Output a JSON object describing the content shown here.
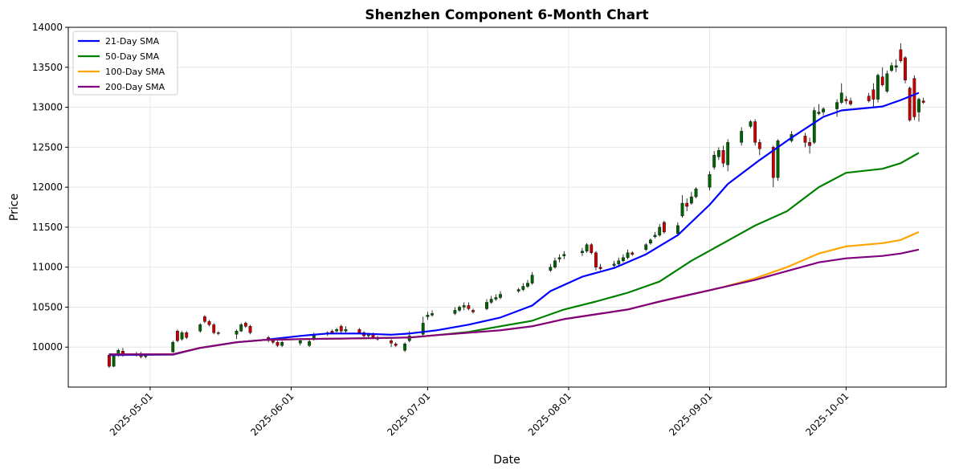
{
  "chart_data": {
    "type": "line",
    "subtype": "candlestick-with-moving-averages",
    "title": "Shenzhen Component 6-Month Chart",
    "xlabel": "Date",
    "ylabel": "Price",
    "ylim": [
      9500,
      14000
    ],
    "yticks": [
      10000,
      10500,
      11000,
      11500,
      12000,
      12500,
      13000,
      13500,
      14000
    ],
    "xlim": [
      "2025-04-13",
      "2025-10-23"
    ],
    "xticks": [
      "2025-05-01",
      "2025-06-01",
      "2025-07-01",
      "2025-08-01",
      "2025-09-01",
      "2025-10-01"
    ],
    "grid": true,
    "legend_position": "top-left",
    "colors": {
      "up": "#006400",
      "down": "#cc0000",
      "wick": "#000000"
    },
    "series": [
      {
        "name": "21-Day SMA",
        "color": "#0000ff",
        "points": [
          [
            "2025-04-22",
            9900
          ],
          [
            "2025-05-06",
            9905
          ],
          [
            "2025-05-12",
            9990
          ],
          [
            "2025-05-20",
            10060
          ],
          [
            "2025-05-26",
            10090
          ],
          [
            "2025-06-03",
            10140
          ],
          [
            "2025-06-09",
            10170
          ],
          [
            "2025-06-16",
            10170
          ],
          [
            "2025-06-23",
            10155
          ],
          [
            "2025-06-27",
            10170
          ],
          [
            "2025-07-03",
            10210
          ],
          [
            "2025-07-10",
            10280
          ],
          [
            "2025-07-17",
            10370
          ],
          [
            "2025-07-24",
            10520
          ],
          [
            "2025-07-28",
            10700
          ],
          [
            "2025-08-04",
            10880
          ],
          [
            "2025-08-11",
            10990
          ],
          [
            "2025-08-18",
            11160
          ],
          [
            "2025-08-25",
            11400
          ],
          [
            "2025-09-01",
            11780
          ],
          [
            "2025-09-05",
            12040
          ],
          [
            "2025-09-12",
            12340
          ],
          [
            "2025-09-19",
            12620
          ],
          [
            "2025-09-26",
            12880
          ],
          [
            "2025-09-30",
            12960
          ],
          [
            "2025-10-09",
            13010
          ],
          [
            "2025-10-13",
            13090
          ],
          [
            "2025-10-17",
            13180
          ]
        ]
      },
      {
        "name": "50-Day SMA",
        "color": "#008000",
        "points": [
          [
            "2025-04-22",
            9910
          ],
          [
            "2025-05-06",
            9910
          ],
          [
            "2025-05-12",
            9990
          ],
          [
            "2025-05-20",
            10060
          ],
          [
            "2025-05-26",
            10090
          ],
          [
            "2025-06-03",
            10100
          ],
          [
            "2025-06-16",
            10110
          ],
          [
            "2025-06-27",
            10120
          ],
          [
            "2025-07-03",
            10150
          ],
          [
            "2025-07-10",
            10190
          ],
          [
            "2025-07-17",
            10260
          ],
          [
            "2025-07-24",
            10330
          ],
          [
            "2025-07-31",
            10470
          ],
          [
            "2025-08-07",
            10570
          ],
          [
            "2025-08-14",
            10680
          ],
          [
            "2025-08-21",
            10820
          ],
          [
            "2025-08-28",
            11080
          ],
          [
            "2025-09-04",
            11300
          ],
          [
            "2025-09-11",
            11520
          ],
          [
            "2025-09-18",
            11700
          ],
          [
            "2025-09-25",
            12000
          ],
          [
            "2025-10-01",
            12180
          ],
          [
            "2025-10-09",
            12230
          ],
          [
            "2025-10-13",
            12300
          ],
          [
            "2025-10-17",
            12430
          ]
        ]
      },
      {
        "name": "100-Day SMA",
        "color": "#ffa500",
        "points": [
          [
            "2025-04-22",
            9910
          ],
          [
            "2025-05-06",
            9910
          ],
          [
            "2025-05-12",
            9990
          ],
          [
            "2025-05-20",
            10060
          ],
          [
            "2025-05-26",
            10090
          ],
          [
            "2025-06-03",
            10100
          ],
          [
            "2025-06-16",
            10110
          ],
          [
            "2025-06-27",
            10120
          ],
          [
            "2025-07-03",
            10150
          ],
          [
            "2025-07-10",
            10180
          ],
          [
            "2025-07-17",
            10210
          ],
          [
            "2025-07-24",
            10260
          ],
          [
            "2025-07-31",
            10350
          ],
          [
            "2025-08-07",
            10410
          ],
          [
            "2025-08-14",
            10470
          ],
          [
            "2025-08-21",
            10570
          ],
          [
            "2025-08-28",
            10660
          ],
          [
            "2025-09-04",
            10750
          ],
          [
            "2025-09-11",
            10860
          ],
          [
            "2025-09-18",
            11000
          ],
          [
            "2025-09-25",
            11170
          ],
          [
            "2025-10-01",
            11260
          ],
          [
            "2025-10-09",
            11300
          ],
          [
            "2025-10-13",
            11340
          ],
          [
            "2025-10-17",
            11440
          ]
        ]
      },
      {
        "name": "200-Day SMA",
        "color": "#800080",
        "points": [
          [
            "2025-04-22",
            9910
          ],
          [
            "2025-05-06",
            9910
          ],
          [
            "2025-05-12",
            9990
          ],
          [
            "2025-05-20",
            10060
          ],
          [
            "2025-05-26",
            10090
          ],
          [
            "2025-06-03",
            10100
          ],
          [
            "2025-06-16",
            10110
          ],
          [
            "2025-06-27",
            10120
          ],
          [
            "2025-07-03",
            10150
          ],
          [
            "2025-07-10",
            10180
          ],
          [
            "2025-07-17",
            10210
          ],
          [
            "2025-07-24",
            10260
          ],
          [
            "2025-07-31",
            10350
          ],
          [
            "2025-08-07",
            10410
          ],
          [
            "2025-08-14",
            10470
          ],
          [
            "2025-08-21",
            10570
          ],
          [
            "2025-08-28",
            10660
          ],
          [
            "2025-09-04",
            10750
          ],
          [
            "2025-09-11",
            10840
          ],
          [
            "2025-09-18",
            10950
          ],
          [
            "2025-09-25",
            11060
          ],
          [
            "2025-10-01",
            11110
          ],
          [
            "2025-10-09",
            11140
          ],
          [
            "2025-10-13",
            11170
          ],
          [
            "2025-10-17",
            11220
          ]
        ]
      }
    ],
    "candles": [
      [
        "2025-04-22",
        9900,
        9760,
        9920,
        9740
      ],
      [
        "2025-04-23",
        9760,
        9900,
        9920,
        9750
      ],
      [
        "2025-04-24",
        9920,
        9960,
        9980,
        9880
      ],
      [
        "2025-04-25",
        9950,
        9900,
        9990,
        9880
      ],
      [
        "2025-04-28",
        9900,
        9920,
        9940,
        9880
      ],
      [
        "2025-04-29",
        9920,
        9880,
        9940,
        9860
      ],
      [
        "2025-04-30",
        9880,
        9900,
        9920,
        9860
      ],
      [
        "2025-05-06",
        9940,
        10060,
        10080,
        9930
      ],
      [
        "2025-05-07",
        10200,
        10080,
        10220,
        10060
      ],
      [
        "2025-05-08",
        10100,
        10180,
        10200,
        10080
      ],
      [
        "2025-05-09",
        10180,
        10120,
        10200,
        10100
      ],
      [
        "2025-05-12",
        10200,
        10280,
        10300,
        10180
      ],
      [
        "2025-05-13",
        10380,
        10320,
        10400,
        10300
      ],
      [
        "2025-05-14",
        10320,
        10280,
        10340,
        10260
      ],
      [
        "2025-05-15",
        10280,
        10180,
        10300,
        10160
      ],
      [
        "2025-05-16",
        10180,
        10170,
        10200,
        10150
      ],
      [
        "2025-05-20",
        10160,
        10200,
        10220,
        10100
      ],
      [
        "2025-05-21",
        10200,
        10280,
        10300,
        10190
      ],
      [
        "2025-05-22",
        10300,
        10260,
        10320,
        10240
      ],
      [
        "2025-05-23",
        10260,
        10180,
        10280,
        10160
      ],
      [
        "2025-05-27",
        10120,
        10080,
        10140,
        10060
      ],
      [
        "2025-05-28",
        10080,
        10060,
        10100,
        10040
      ],
      [
        "2025-05-29",
        10060,
        10020,
        10080,
        10000
      ],
      [
        "2025-05-30",
        10020,
        10060,
        10080,
        10000
      ],
      [
        "2025-06-03",
        10050,
        10080,
        10100,
        10020
      ],
      [
        "2025-06-05",
        10020,
        10070,
        10100,
        10000
      ],
      [
        "2025-06-06",
        10100,
        10160,
        10180,
        10080
      ],
      [
        "2025-06-09",
        10160,
        10180,
        10200,
        10140
      ],
      [
        "2025-06-10",
        10200,
        10180,
        10220,
        10160
      ],
      [
        "2025-06-11",
        10200,
        10220,
        10240,
        10180
      ],
      [
        "2025-06-12",
        10260,
        10200,
        10280,
        10180
      ],
      [
        "2025-06-13",
        10200,
        10220,
        10260,
        10180
      ],
      [
        "2025-06-16",
        10220,
        10180,
        10240,
        10160
      ],
      [
        "2025-06-17",
        10180,
        10140,
        10200,
        10120
      ],
      [
        "2025-06-18",
        10140,
        10160,
        10180,
        10120
      ],
      [
        "2025-06-19",
        10160,
        10120,
        10180,
        10100
      ],
      [
        "2025-06-20",
        10120,
        10100,
        10140,
        10080
      ],
      [
        "2025-06-23",
        10080,
        10050,
        10100,
        10000
      ],
      [
        "2025-06-24",
        10040,
        10020,
        10060,
        10000
      ],
      [
        "2025-06-26",
        9960,
        10040,
        10060,
        9940
      ],
      [
        "2025-06-27",
        10080,
        10140,
        10200,
        10060
      ],
      [
        "2025-06-30",
        10160,
        10300,
        10380,
        10140
      ],
      [
        "2025-07-01",
        10380,
        10400,
        10440,
        10340
      ],
      [
        "2025-07-02",
        10400,
        10420,
        10460,
        10380
      ],
      [
        "2025-07-07",
        10420,
        10460,
        10500,
        10400
      ],
      [
        "2025-07-08",
        10460,
        10500,
        10520,
        10440
      ],
      [
        "2025-07-09",
        10500,
        10520,
        10560,
        10460
      ],
      [
        "2025-07-10",
        10520,
        10480,
        10560,
        10460
      ],
      [
        "2025-07-11",
        10460,
        10440,
        10480,
        10420
      ],
      [
        "2025-07-14",
        10480,
        10560,
        10600,
        10460
      ],
      [
        "2025-07-15",
        10560,
        10600,
        10640,
        10540
      ],
      [
        "2025-07-16",
        10600,
        10620,
        10660,
        10580
      ],
      [
        "2025-07-17",
        10620,
        10660,
        10700,
        10600
      ],
      [
        "2025-07-21",
        10700,
        10720,
        10740,
        10680
      ],
      [
        "2025-07-22",
        10720,
        10760,
        10800,
        10700
      ],
      [
        "2025-07-23",
        10760,
        10800,
        10840,
        10740
      ],
      [
        "2025-07-24",
        10800,
        10900,
        10940,
        10780
      ],
      [
        "2025-07-28",
        10960,
        11000,
        11040,
        10940
      ],
      [
        "2025-07-29",
        11000,
        11080,
        11120,
        10980
      ],
      [
        "2025-07-30",
        11100,
        11120,
        11160,
        11060
      ],
      [
        "2025-07-31",
        11140,
        11160,
        11200,
        11100
      ],
      [
        "2025-08-04",
        11180,
        11200,
        11240,
        11140
      ],
      [
        "2025-08-05",
        11200,
        11280,
        11300,
        11180
      ],
      [
        "2025-08-06",
        11280,
        11180,
        11300,
        11160
      ],
      [
        "2025-08-07",
        11180,
        11000,
        11200,
        10960
      ],
      [
        "2025-08-08",
        11000,
        10980,
        11040,
        10960
      ],
      [
        "2025-08-11",
        11020,
        11040,
        11080,
        11000
      ],
      [
        "2025-08-12",
        11040,
        11080,
        11120,
        11020
      ],
      [
        "2025-08-13",
        11080,
        11120,
        11160,
        11060
      ],
      [
        "2025-08-14",
        11120,
        11180,
        11220,
        11100
      ],
      [
        "2025-08-15",
        11180,
        11160,
        11200,
        11140
      ],
      [
        "2025-08-18",
        11220,
        11280,
        11300,
        11200
      ],
      [
        "2025-08-19",
        11300,
        11340,
        11360,
        11280
      ],
      [
        "2025-08-20",
        11380,
        11400,
        11440,
        11360
      ],
      [
        "2025-08-21",
        11400,
        11500,
        11540,
        11380
      ],
      [
        "2025-08-22",
        11560,
        11440,
        11580,
        11420
      ],
      [
        "2025-08-25",
        11420,
        11520,
        11560,
        11400
      ],
      [
        "2025-08-26",
        11640,
        11800,
        11900,
        11620
      ],
      [
        "2025-08-27",
        11800,
        11760,
        11860,
        11700
      ],
      [
        "2025-08-28",
        11800,
        11880,
        11940,
        11780
      ],
      [
        "2025-08-29",
        11880,
        11980,
        12000,
        11860
      ],
      [
        "2025-09-01",
        12000,
        12160,
        12200,
        11960
      ],
      [
        "2025-09-02",
        12250,
        12400,
        12450,
        12220
      ],
      [
        "2025-09-03",
        12380,
        12460,
        12500,
        12340
      ],
      [
        "2025-09-04",
        12460,
        12300,
        12520,
        12250
      ],
      [
        "2025-09-05",
        12280,
        12560,
        12600,
        12200
      ],
      [
        "2025-09-08",
        12560,
        12700,
        12750,
        12520
      ],
      [
        "2025-09-10",
        12760,
        12820,
        12840,
        12740
      ],
      [
        "2025-09-11",
        12820,
        12560,
        12850,
        12520
      ],
      [
        "2025-09-12",
        12560,
        12480,
        12600,
        12400
      ],
      [
        "2025-09-15",
        12500,
        12120,
        12520,
        12000
      ],
      [
        "2025-09-16",
        12120,
        12580,
        12600,
        12080
      ],
      [
        "2025-09-19",
        12580,
        12660,
        12700,
        12560
      ],
      [
        "2025-09-22",
        12640,
        12560,
        12680,
        12500
      ],
      [
        "2025-09-23",
        12560,
        12520,
        12620,
        12420
      ],
      [
        "2025-09-24",
        12560,
        12960,
        13000,
        12540
      ],
      [
        "2025-09-25",
        12920,
        12940,
        13040,
        12900
      ],
      [
        "2025-09-26",
        12940,
        12980,
        13000,
        12900
      ],
      [
        "2025-09-29",
        12980,
        13060,
        13100,
        12880
      ],
      [
        "2025-09-30",
        13060,
        13180,
        13300,
        13040
      ],
      [
        "2025-10-01",
        13100,
        13080,
        13140,
        13040
      ],
      [
        "2025-10-02",
        13080,
        13040,
        13120,
        13020
      ],
      [
        "2025-10-06",
        13140,
        13080,
        13180,
        13060
      ],
      [
        "2025-10-07",
        13220,
        13100,
        13300,
        13000
      ],
      [
        "2025-10-08",
        13100,
        13400,
        13420,
        13060
      ],
      [
        "2025-10-09",
        13380,
        13280,
        13500,
        13260
      ],
      [
        "2025-10-10",
        13200,
        13420,
        13460,
        13180
      ],
      [
        "2025-10-11",
        13460,
        13520,
        13560,
        13440
      ],
      [
        "2025-10-12",
        13500,
        13520,
        13600,
        13440
      ],
      [
        "2025-10-13",
        13720,
        13580,
        13800,
        13560
      ],
      [
        "2025-10-14",
        13620,
        13340,
        13640,
        13300
      ],
      [
        "2025-10-15",
        13240,
        12840,
        13260,
        12820
      ],
      [
        "2025-10-16",
        13360,
        12880,
        13400,
        12840
      ],
      [
        "2025-10-17",
        12940,
        13100,
        13120,
        12820
      ],
      [
        "2025-10-18",
        13080,
        13060,
        13120,
        13040
      ]
    ]
  }
}
